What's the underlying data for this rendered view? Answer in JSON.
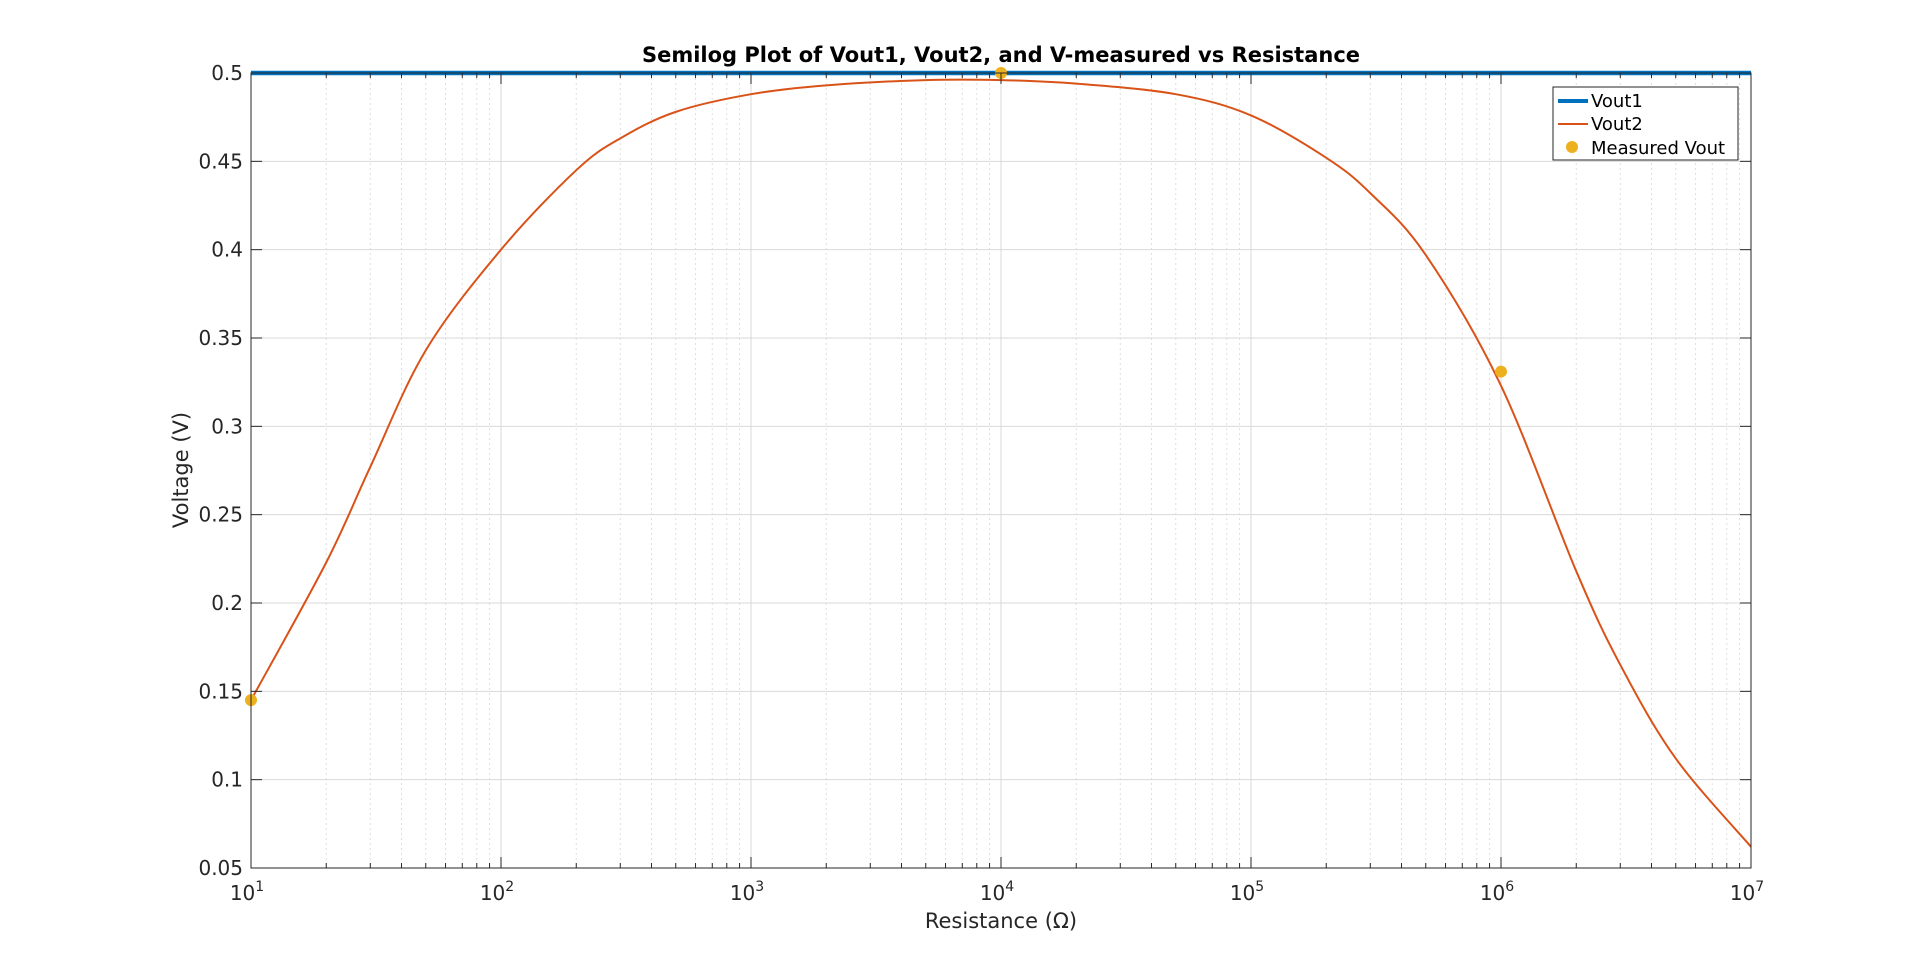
{
  "chart_data": {
    "type": "line",
    "title": "Semilog Plot of Vout1, Vout2, and V-measured vs Resistance",
    "xlabel": "Resistance (Ω)",
    "ylabel": "Voltage (V)",
    "xscale": "log",
    "xlim": [
      10,
      10000000
    ],
    "ylim": [
      0.05,
      0.5
    ],
    "grid": true,
    "legend_position": "top-right",
    "x_ticks": [
      {
        "base": "10",
        "exp": "1"
      },
      {
        "base": "10",
        "exp": "2"
      },
      {
        "base": "10",
        "exp": "3"
      },
      {
        "base": "10",
        "exp": "4"
      },
      {
        "base": "10",
        "exp": "5"
      },
      {
        "base": "10",
        "exp": "6"
      },
      {
        "base": "10",
        "exp": "7"
      }
    ],
    "y_ticks": [
      "0.05",
      "0.1",
      "0.15",
      "0.2",
      "0.25",
      "0.3",
      "0.35",
      "0.4",
      "0.45",
      "0.5"
    ],
    "series": [
      {
        "name": "Vout1",
        "style": "line",
        "color": "#0072BD",
        "x": [
          10,
          10000000
        ],
        "y": [
          0.5,
          0.5
        ]
      },
      {
        "name": "Vout2",
        "style": "line",
        "color": "#D95319",
        "x": [
          10,
          20,
          30,
          50,
          100,
          200,
          300,
          500,
          1000,
          2000,
          5000,
          10000,
          20000,
          50000,
          100000,
          200000,
          300000,
          500000,
          1000000,
          2000000,
          3000000,
          5000000,
          10000000
        ],
        "y": [
          0.145,
          0.223,
          0.277,
          0.343,
          0.4,
          0.445,
          0.463,
          0.478,
          0.488,
          0.493,
          0.496,
          0.496,
          0.494,
          0.488,
          0.476,
          0.452,
          0.432,
          0.397,
          0.323,
          0.218,
          0.165,
          0.112,
          0.062
        ]
      },
      {
        "name": "Measured Vout",
        "style": "marker",
        "color": "#EDB120",
        "x": [
          10,
          10000,
          1000000
        ],
        "y": [
          0.145,
          0.5,
          0.331
        ]
      }
    ]
  }
}
